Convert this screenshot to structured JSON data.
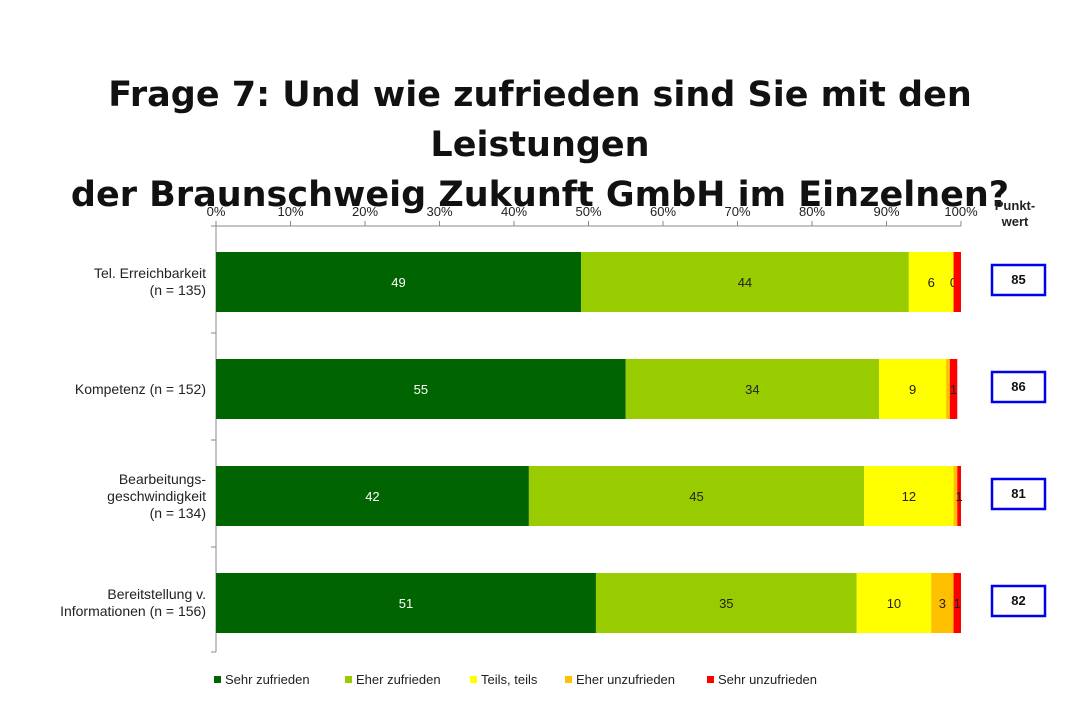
{
  "title": {
    "line1": "Frage 7: Und wie zufrieden sind Sie mit den Leistungen",
    "line2": "der Braunschweig Zukunft GmbH im Einzelnen?"
  },
  "punktwert_header": {
    "line1": "Punkt-",
    "line2": "wert"
  },
  "chart_data": {
    "type": "bar",
    "orientation": "horizontal",
    "stacked": true,
    "percent_scale": true,
    "x_ticks": [
      "0%",
      "10%",
      "20%",
      "30%",
      "40%",
      "50%",
      "60%",
      "70%",
      "80%",
      "90%",
      "100%"
    ],
    "xlim": [
      0,
      100
    ],
    "categories": [
      {
        "lines": [
          "Tel. Erreichbarkeit",
          "(n = 135)"
        ]
      },
      {
        "lines": [
          "Kompetenz (n = 152)"
        ]
      },
      {
        "lines": [
          "Bearbeitungs-",
          "geschwindigkeit",
          "(n = 134)"
        ]
      },
      {
        "lines": [
          "Bereitstellung v.",
          "Informationen (n = 156)"
        ]
      }
    ],
    "series": [
      {
        "name": "Sehr zufrieden",
        "color": "#006400",
        "values": [
          49,
          55,
          42,
          51
        ],
        "labels": [
          "49",
          "55",
          "42",
          "51"
        ],
        "label_color": "#ffffff"
      },
      {
        "name": "Eher zufrieden",
        "color": "#99cc00",
        "values": [
          44,
          34,
          45,
          35
        ],
        "labels": [
          "44",
          "34",
          "45",
          "35"
        ],
        "label_color": "#222222"
      },
      {
        "name": "Teils, teils",
        "color": "#ffff00",
        "values": [
          6,
          9,
          12,
          10
        ],
        "labels": [
          "6",
          "9",
          "12",
          "10"
        ],
        "label_color": "#222222"
      },
      {
        "name": "Eher unzufrieden",
        "color": "#ffc000",
        "values": [
          0,
          0.5,
          0.5,
          3
        ],
        "labels": [
          "0",
          "",
          "",
          "3"
        ],
        "label_color": "#222222"
      },
      {
        "name": "Sehr unzufrieden",
        "color": "#ff0000",
        "values": [
          1,
          1,
          1,
          1
        ],
        "labels": [
          "",
          "1",
          "1",
          "1"
        ],
        "label_color": "#222222"
      }
    ],
    "punktwert": [
      "85",
      "86",
      "81",
      "82"
    ],
    "legend_position": "bottom",
    "grid": false
  }
}
